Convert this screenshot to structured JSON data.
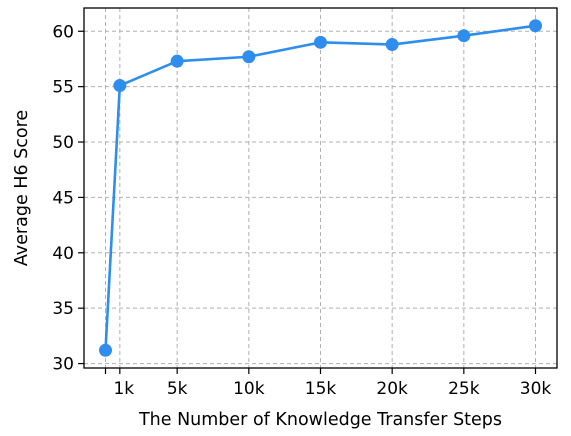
{
  "chart_data": {
    "type": "line",
    "title": "",
    "xlabel": "The Number of Knowledge Transfer Steps",
    "ylabel": "Average H6 Score",
    "x": [
      0,
      1000,
      5000,
      10000,
      15000,
      20000,
      25000,
      30000
    ],
    "series": [
      {
        "name": "",
        "values": [
          31.2,
          55.1,
          57.3,
          57.7,
          59.0,
          58.8,
          59.6,
          60.5
        ]
      }
    ],
    "xticks": [
      {
        "value": 1000,
        "label": "1k"
      },
      {
        "value": 5000,
        "label": "5k"
      },
      {
        "value": 10000,
        "label": "10k"
      },
      {
        "value": 15000,
        "label": "15k"
      },
      {
        "value": 20000,
        "label": "20k"
      },
      {
        "value": 25000,
        "label": "25k"
      },
      {
        "value": 30000,
        "label": "30k"
      }
    ],
    "xgrid": [
      0,
      1000,
      5000,
      10000,
      15000,
      20000,
      25000,
      30000
    ],
    "yticks": [
      30,
      35,
      40,
      45,
      50,
      55,
      60
    ],
    "xlim": [
      -1500,
      31500
    ],
    "ylim": [
      29.6,
      62.1
    ],
    "grid": true,
    "grid_style": "dashed",
    "legend": "none",
    "colors": {
      "line": "#2f8ded",
      "marker": "#2f8ded",
      "grid": "#b0b0b0",
      "axes": "#000000"
    }
  }
}
